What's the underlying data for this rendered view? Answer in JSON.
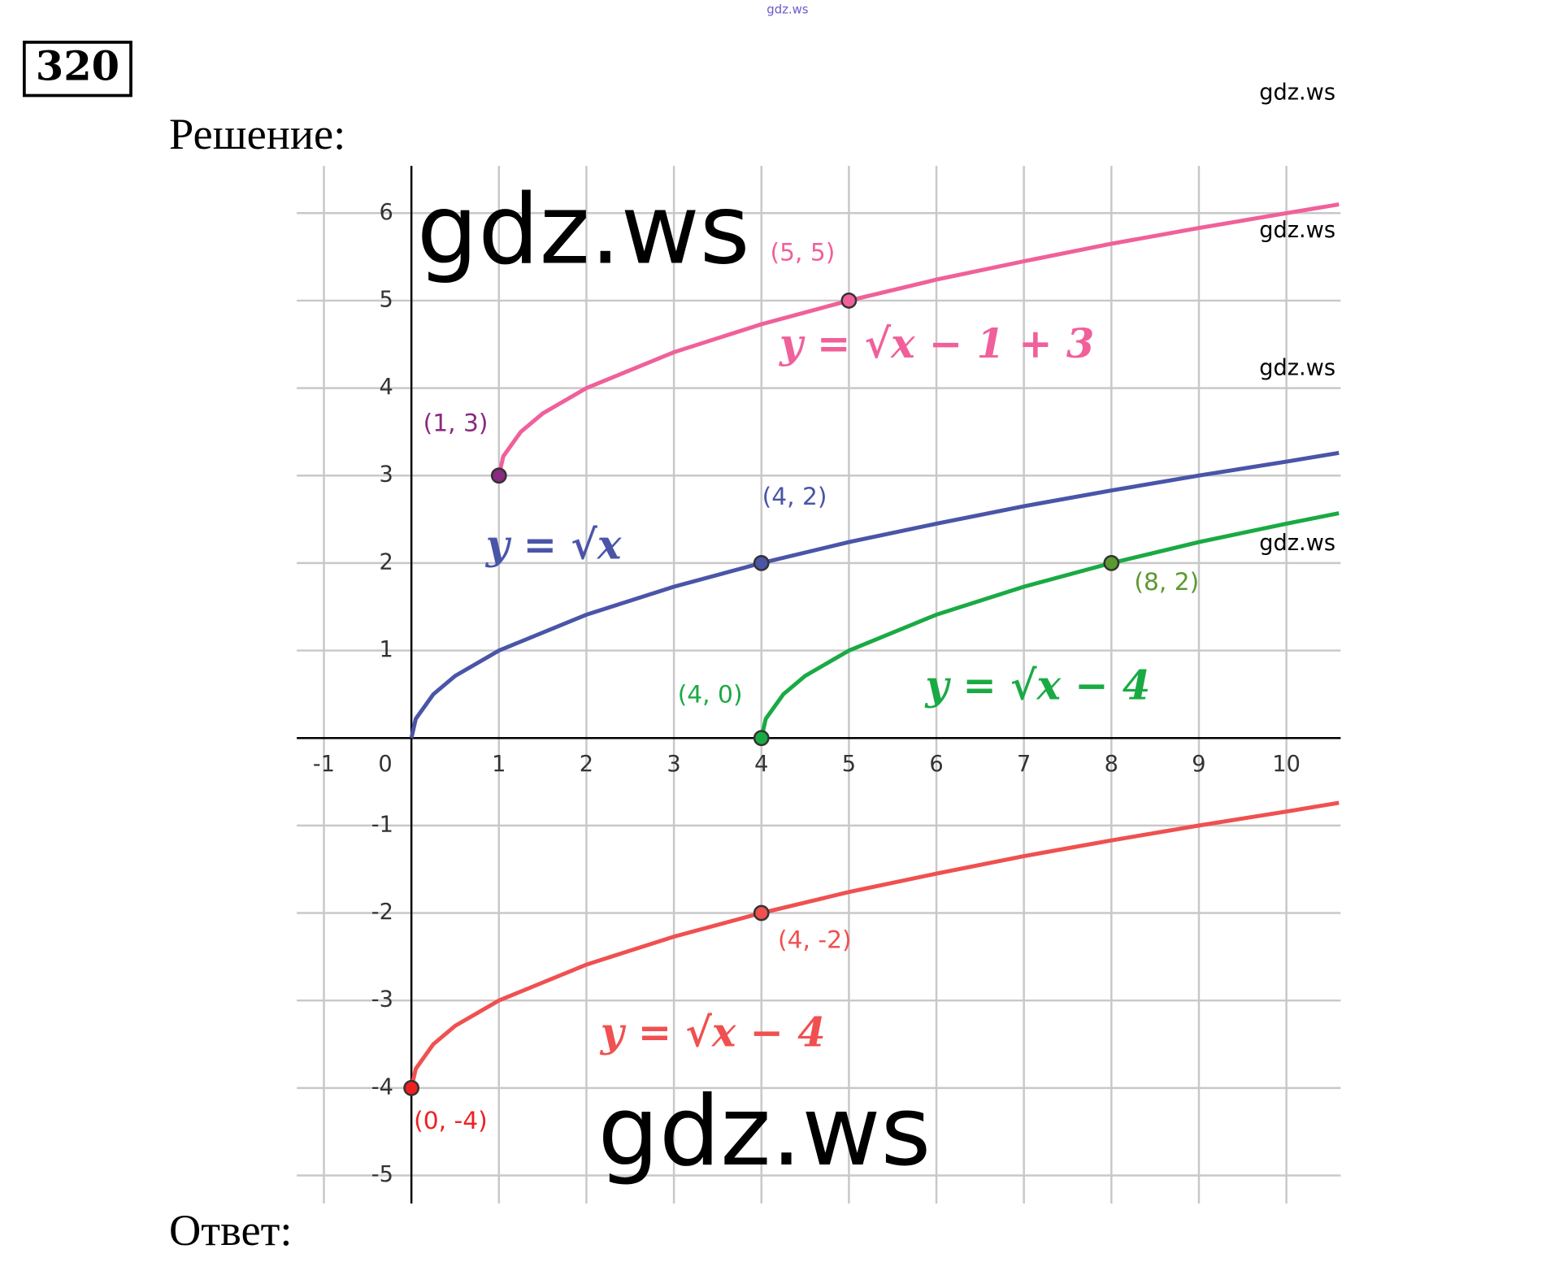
{
  "problem_number": "320",
  "solution_label": "Решение:",
  "answer_label": "Ответ:",
  "watermarks": [
    "gdz.ws",
    "gdz.ws",
    "gdz.ws",
    "gdz.ws",
    "gdz.ws",
    "gdz.ws",
    "gdz.ws"
  ],
  "chart_data": {
    "type": "line",
    "xlim": [
      -1.31,
      10.62
    ],
    "ylim": [
      -5.32,
      6.54
    ],
    "xticks": [
      -1,
      0,
      1,
      2,
      3,
      4,
      5,
      6,
      7,
      8,
      9,
      10
    ],
    "yticks": [
      -5,
      -4,
      -3,
      -2,
      -1,
      1,
      2,
      3,
      4,
      5,
      6
    ],
    "grid": true,
    "series": [
      {
        "name": "y = √x − 1 + 3",
        "color": "#f0609a",
        "x": [
          1,
          1.05,
          1.25,
          1.5,
          2,
          3,
          4,
          5,
          6,
          7,
          8,
          9,
          10,
          10.6
        ],
        "values": [
          3,
          3.22,
          3.5,
          3.71,
          4,
          4.41,
          4.73,
          5,
          5.24,
          5.45,
          5.65,
          5.83,
          6,
          6.1
        ]
      },
      {
        "name": "y = √x",
        "color": "#4a55a8",
        "x": [
          0,
          0.05,
          0.25,
          0.5,
          1,
          2,
          3,
          4,
          5,
          6,
          7,
          8,
          9,
          10,
          10.6
        ],
        "values": [
          0,
          0.22,
          0.5,
          0.71,
          1,
          1.41,
          1.73,
          2,
          2.24,
          2.45,
          2.65,
          2.83,
          3,
          3.16,
          3.26
        ]
      },
      {
        "name": "y = √x − 4",
        "color": "#1aaa44",
        "x": [
          4,
          4.05,
          4.25,
          4.5,
          5,
          6,
          7,
          8,
          9,
          10,
          10.6
        ],
        "values": [
          0,
          0.22,
          0.5,
          0.71,
          1,
          1.41,
          1.73,
          2,
          2.24,
          2.45,
          2.57
        ]
      },
      {
        "name": "y = √x − 4",
        "color": "#f05050",
        "x": [
          0,
          0.05,
          0.25,
          0.5,
          1,
          2,
          3,
          4,
          5,
          6,
          7,
          8,
          9,
          10,
          10.6
        ],
        "values": [
          -4,
          -3.78,
          -3.5,
          -3.29,
          -3,
          -2.59,
          -2.27,
          -2,
          -1.76,
          -1.55,
          -1.35,
          -1.17,
          -1,
          -0.84,
          -0.74
        ]
      }
    ],
    "points": [
      {
        "x": 5,
        "y": 5,
        "label": "(5, 5)",
        "color": "#f0609a"
      },
      {
        "x": 1,
        "y": 3,
        "label": "(1, 3)",
        "color": "#8a2a80"
      },
      {
        "x": 4,
        "y": 2,
        "label": "(4, 2)",
        "color": "#4a55a8"
      },
      {
        "x": 4,
        "y": 0,
        "label": "(4, 0)",
        "color": "#1aaa44"
      },
      {
        "x": 8,
        "y": 2,
        "label": "(8, 2)",
        "color": "#5a9a30"
      },
      {
        "x": 4,
        "y": -2,
        "label": "(4, -2)",
        "color": "#f05050"
      },
      {
        "x": 0,
        "y": -4,
        "label": "(0, -4)",
        "color": "#f02020"
      }
    ]
  }
}
